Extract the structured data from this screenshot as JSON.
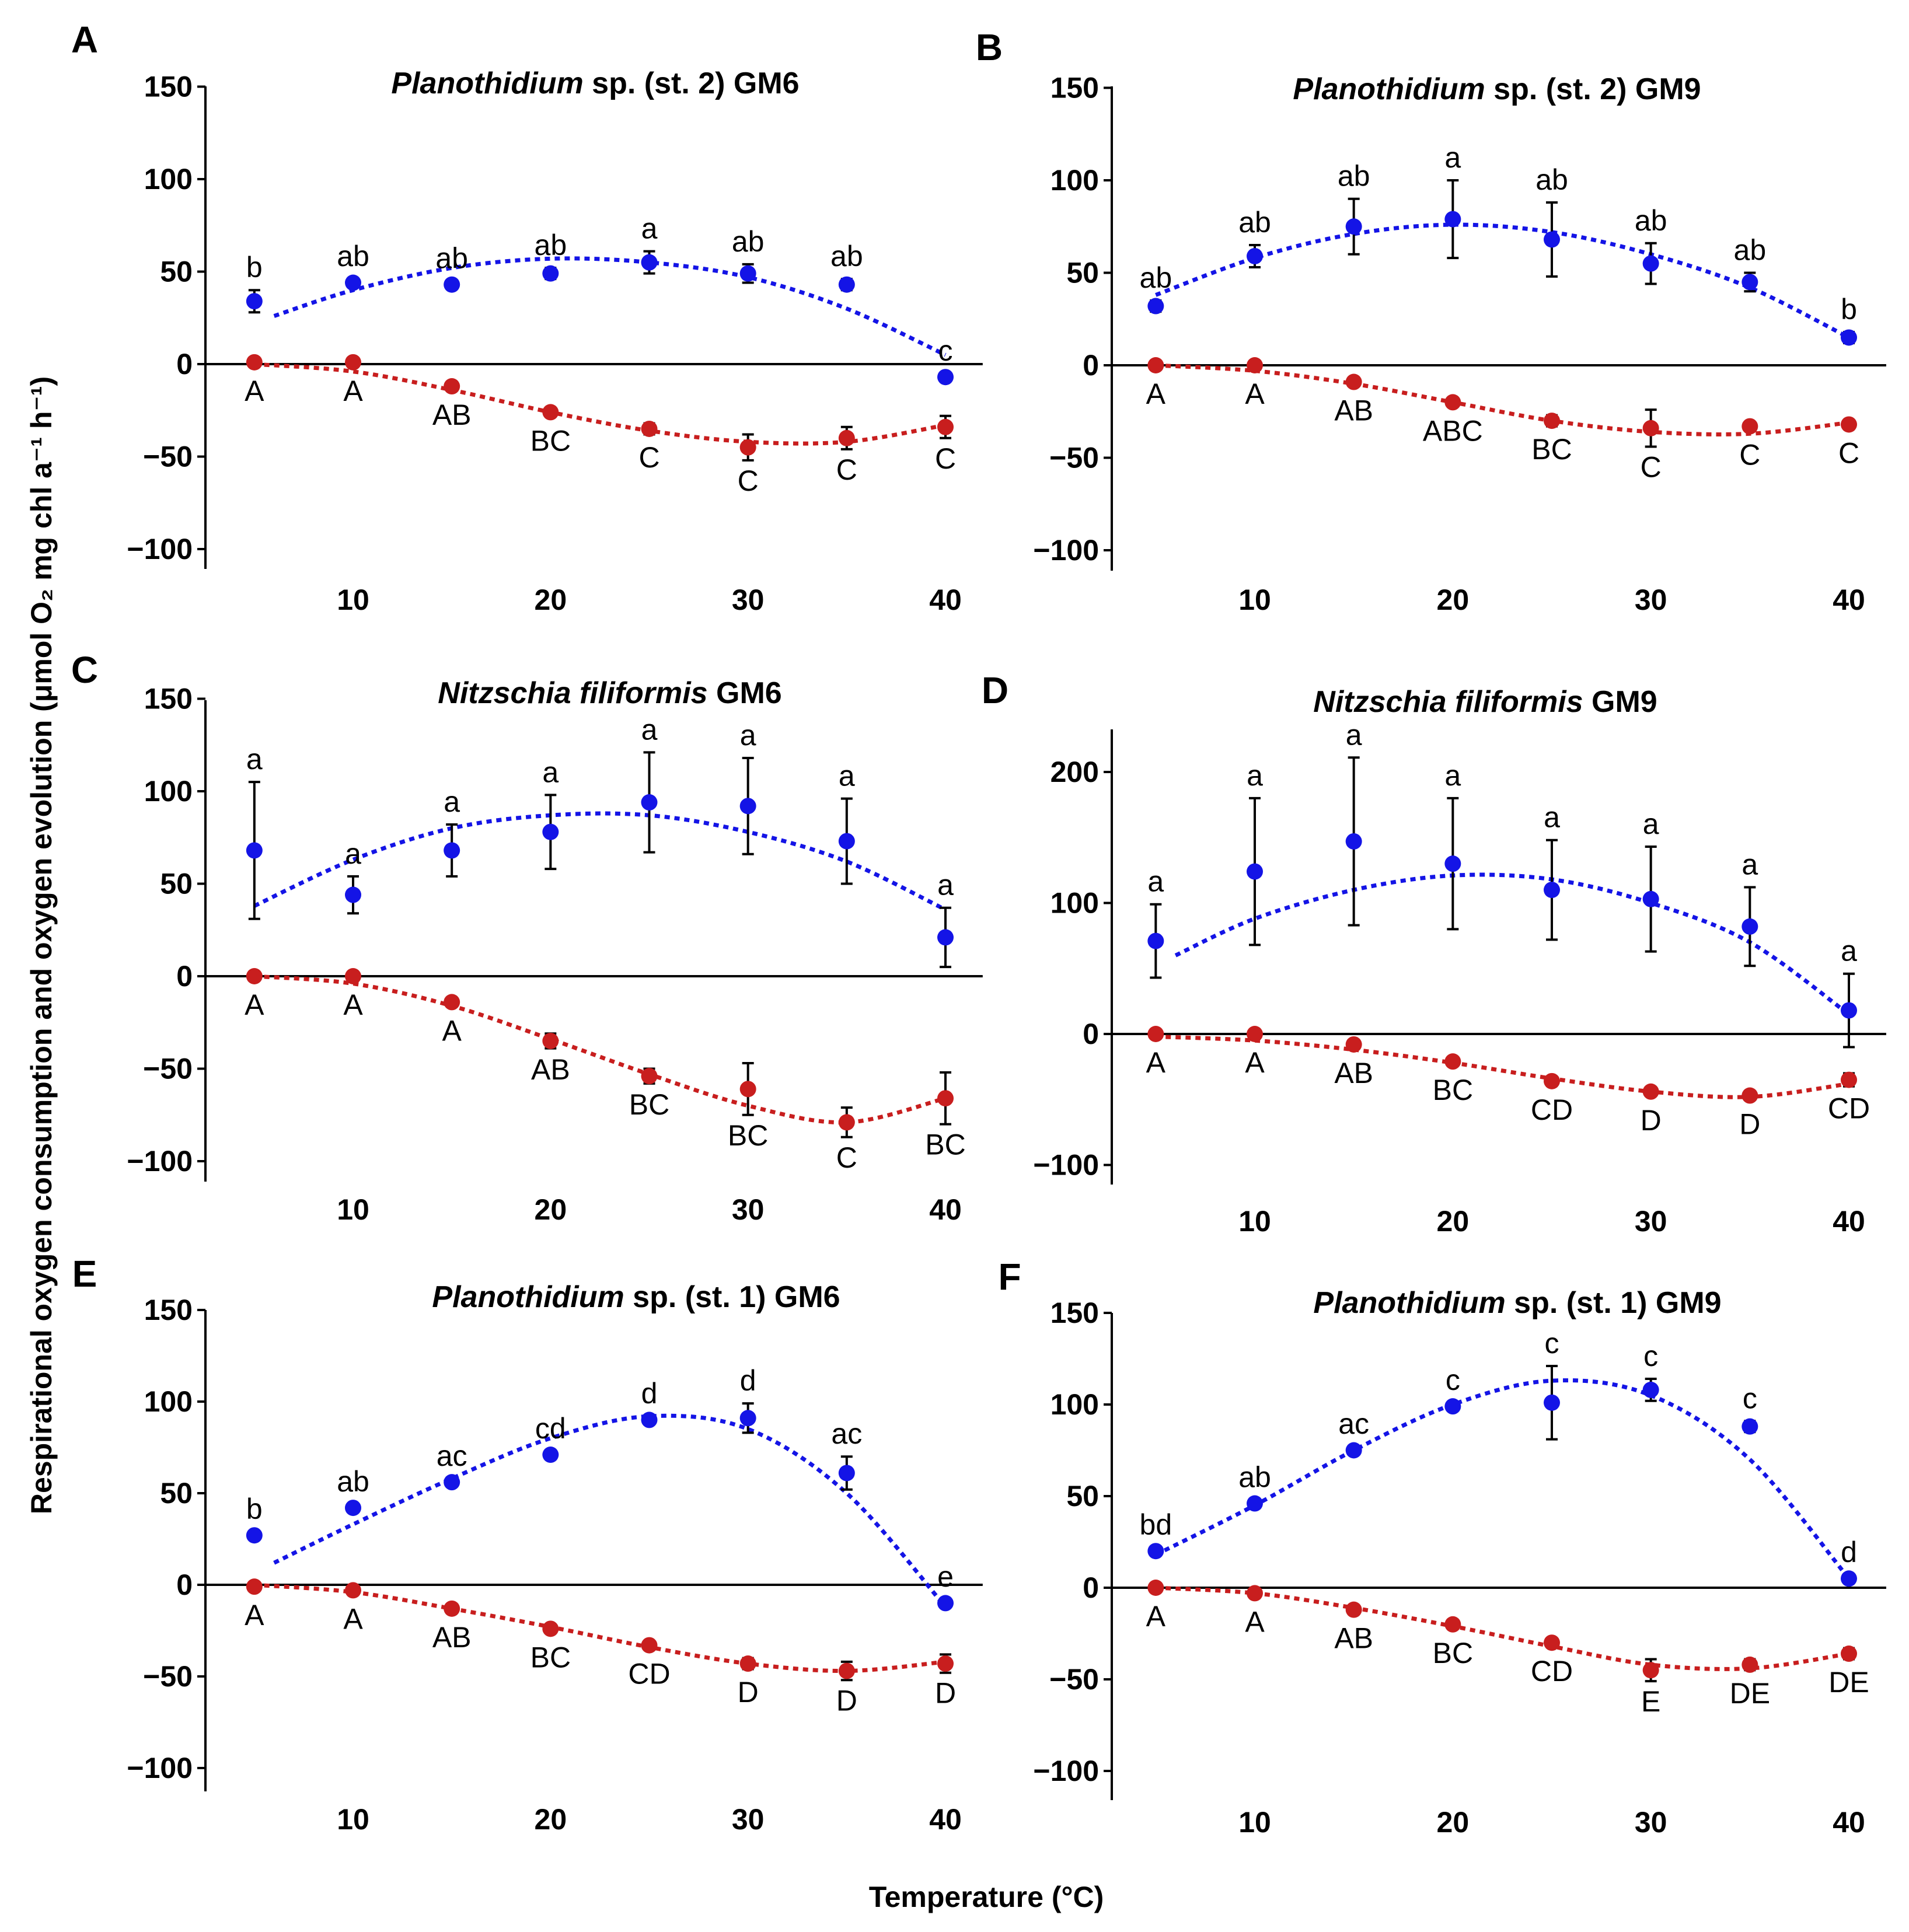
{
  "figure": {
    "y_axis_label": "Respirational oxygen consumption and oxygen evolution (μmol O₂ mg chl a⁻¹ h⁻¹)",
    "x_axis_label": "Temperature (°C)"
  },
  "colors": {
    "photosynthesis": "#1414e6",
    "respiration": "#c81e1e",
    "axis": "#000000"
  },
  "chart_data": [
    {
      "panel": "A",
      "type": "scatter",
      "title": "Planothidium sp. (st. 2) GM6",
      "title_italic": "Planothidium",
      "title_rest": " sp. (st. 2) GM6",
      "x": [
        5,
        10,
        15,
        20,
        25,
        30,
        35,
        40
      ],
      "xticks": [
        10,
        20,
        30,
        40
      ],
      "yticks": [
        150,
        100,
        50,
        0,
        -50,
        -100
      ],
      "xlim": [
        3,
        41
      ],
      "ylim": [
        -110,
        150
      ],
      "series": [
        {
          "name": "Oxygen evolution",
          "values": [
            34,
            44,
            43,
            49,
            55,
            49,
            43,
            -7
          ],
          "err": [
            6,
            2,
            2,
            3,
            6,
            5,
            3,
            2
          ],
          "labels": [
            "b",
            "ab",
            "ab",
            "ab",
            "a",
            "ab",
            "ab",
            "c"
          ],
          "fit": [
            [
              6,
              26
            ],
            [
              10,
              40
            ],
            [
              15,
              52
            ],
            [
              20,
              57
            ],
            [
              25,
              55
            ],
            [
              30,
              47
            ],
            [
              35,
              30
            ],
            [
              40,
              5
            ]
          ]
        },
        {
          "name": "Respiration",
          "values": [
            1,
            1,
            -12,
            -26,
            -35,
            -45,
            -40,
            -34
          ],
          "err": [
            1,
            1,
            2,
            2,
            3,
            7,
            6,
            6
          ],
          "labels": [
            "A",
            "A",
            "AB",
            "BC",
            "C",
            "C",
            "C",
            "C"
          ],
          "fit": [
            [
              5,
              0
            ],
            [
              10,
              -4
            ],
            [
              15,
              -14
            ],
            [
              20,
              -26
            ],
            [
              25,
              -36
            ],
            [
              30,
              -42
            ],
            [
              35,
              -42
            ],
            [
              40,
              -33
            ]
          ]
        }
      ]
    },
    {
      "panel": "B",
      "type": "scatter",
      "title": "Planothidium sp. (st. 2) GM9",
      "title_italic": "Planothidium",
      "title_rest": " sp. (st. 2) GM9",
      "x": [
        5,
        10,
        15,
        20,
        25,
        30,
        35,
        40
      ],
      "xticks": [
        10,
        20,
        30,
        40
      ],
      "yticks": [
        150,
        100,
        50,
        0,
        -50,
        -100
      ],
      "xlim": [
        3,
        41
      ],
      "ylim": [
        -110,
        150
      ],
      "series": [
        {
          "name": "Oxygen evolution",
          "values": [
            32,
            59,
            75,
            79,
            68,
            55,
            45,
            15
          ],
          "err": [
            3,
            6,
            15,
            21,
            20,
            11,
            5,
            3
          ],
          "labels": [
            "ab",
            "ab",
            "ab",
            "a",
            "ab",
            "ab",
            "ab",
            "b"
          ],
          "fit": [
            [
              5,
              38
            ],
            [
              10,
              58
            ],
            [
              15,
              71
            ],
            [
              20,
              76
            ],
            [
              25,
              72
            ],
            [
              30,
              60
            ],
            [
              35,
              42
            ],
            [
              40,
              15
            ]
          ]
        },
        {
          "name": "Respiration",
          "values": [
            0,
            0,
            -9,
            -20,
            -30,
            -34,
            -33,
            -32
          ],
          "err": [
            1,
            1,
            2,
            2,
            3,
            10,
            2,
            2
          ],
          "labels": [
            "A",
            "A",
            "AB",
            "ABC",
            "BC",
            "C",
            "C",
            "C"
          ],
          "fit": [
            [
              5,
              0
            ],
            [
              10,
              -3
            ],
            [
              15,
              -10
            ],
            [
              20,
              -20
            ],
            [
              25,
              -30
            ],
            [
              30,
              -36
            ],
            [
              35,
              -37
            ],
            [
              40,
              -31
            ]
          ]
        }
      ]
    },
    {
      "panel": "C",
      "type": "scatter",
      "title": "Nitzschia filiformis GM6",
      "title_italic": "Nitzschia filiformis",
      "title_rest": " GM6",
      "x": [
        5,
        10,
        15,
        20,
        25,
        30,
        35,
        40
      ],
      "xticks": [
        10,
        20,
        30,
        40
      ],
      "yticks": [
        150,
        100,
        50,
        0,
        -50,
        -100
      ],
      "xlim": [
        3,
        41
      ],
      "ylim": [
        -110,
        150
      ],
      "series": [
        {
          "name": "Oxygen evolution",
          "values": [
            68,
            44,
            68,
            78,
            94,
            92,
            73,
            21
          ],
          "err": [
            37,
            10,
            14,
            20,
            27,
            26,
            23,
            16
          ],
          "labels": [
            "a",
            "a",
            "a",
            "a",
            "a",
            "a",
            "a",
            "a"
          ],
          "fit": [
            [
              5,
              38
            ],
            [
              10,
              63
            ],
            [
              15,
              80
            ],
            [
              20,
              87
            ],
            [
              25,
              87
            ],
            [
              30,
              78
            ],
            [
              35,
              62
            ],
            [
              40,
              36
            ]
          ]
        },
        {
          "name": "Respiration",
          "values": [
            0,
            0,
            -14,
            -35,
            -54,
            -61,
            -79,
            -66
          ],
          "err": [
            1,
            1,
            2,
            4,
            4,
            14,
            8,
            14
          ],
          "labels": [
            "A",
            "A",
            "A",
            "AB",
            "BC",
            "BC",
            "C",
            "BC"
          ],
          "fit": [
            [
              5,
              0
            ],
            [
              10,
              -4
            ],
            [
              15,
              -16
            ],
            [
              20,
              -34
            ],
            [
              25,
              -53
            ],
            [
              30,
              -70
            ],
            [
              35,
              -79
            ],
            [
              40,
              -66
            ]
          ]
        }
      ]
    },
    {
      "panel": "D",
      "type": "scatter",
      "title": "Nitzschia filiformis GM9",
      "title_italic": "Nitzschia filiformis",
      "title_rest": " GM9",
      "x": [
        5,
        10,
        15,
        20,
        25,
        30,
        35,
        40
      ],
      "xticks": [
        10,
        20,
        30,
        40
      ],
      "yticks": [
        200,
        100,
        0,
        -100
      ],
      "xlim": [
        3,
        41
      ],
      "ylim": [
        -115,
        230
      ],
      "series": [
        {
          "name": "Oxygen evolution",
          "values": [
            71,
            124,
            147,
            130,
            110,
            103,
            82,
            18
          ],
          "err": [
            28,
            56,
            64,
            50,
            38,
            40,
            30,
            28
          ],
          "labels": [
            "a",
            "a",
            "a",
            "a",
            "a",
            "a",
            "a",
            "a"
          ],
          "fit": [
            [
              6,
              60
            ],
            [
              10,
              88
            ],
            [
              15,
              110
            ],
            [
              20,
              121
            ],
            [
              25,
              118
            ],
            [
              30,
              100
            ],
            [
              35,
              70
            ],
            [
              40,
              15
            ]
          ]
        },
        {
          "name": "Respiration",
          "values": [
            0,
            0,
            -8,
            -21,
            -36,
            -44,
            -47,
            -35
          ],
          "err": [
            1,
            1,
            2,
            3,
            3,
            3,
            3,
            5
          ],
          "labels": [
            "A",
            "A",
            "AB",
            "BC",
            "CD",
            "D",
            "D",
            "CD"
          ],
          "fit": [
            [
              5,
              -2
            ],
            [
              10,
              -5
            ],
            [
              15,
              -12
            ],
            [
              20,
              -22
            ],
            [
              25,
              -34
            ],
            [
              30,
              -44
            ],
            [
              35,
              -48
            ],
            [
              40,
              -38
            ]
          ]
        }
      ]
    },
    {
      "panel": "E",
      "type": "scatter",
      "title": "Planothidium sp. (st. 1) GM6",
      "title_italic": "Planothidium",
      "title_rest": " sp. (st. 1) GM6",
      "x": [
        5,
        10,
        15,
        20,
        25,
        30,
        35,
        40
      ],
      "xticks": [
        10,
        20,
        30,
        40
      ],
      "yticks": [
        150,
        100,
        50,
        0,
        -50,
        -100
      ],
      "xlim": [
        3,
        41
      ],
      "ylim": [
        -110,
        150
      ],
      "series": [
        {
          "name": "Oxygen evolution",
          "values": [
            27,
            42,
            56,
            71,
            90,
            91,
            61,
            -10
          ],
          "err": [
            2,
            2,
            2,
            2,
            2,
            8,
            9,
            2
          ],
          "labels": [
            "b",
            "ab",
            "ac",
            "cd",
            "d",
            "d",
            "ac",
            "e"
          ],
          "fit": [
            [
              6,
              12
            ],
            [
              10,
              33
            ],
            [
              15,
              58
            ],
            [
              20,
              80
            ],
            [
              25,
              92
            ],
            [
              30,
              85
            ],
            [
              35,
              50
            ],
            [
              40,
              -12
            ]
          ]
        },
        {
          "name": "Respiration",
          "values": [
            -1,
            -3,
            -13,
            -24,
            -33,
            -43,
            -47,
            -43
          ],
          "err": [
            1,
            2,
            2,
            2,
            2,
            3,
            5,
            5
          ],
          "labels": [
            "A",
            "A",
            "AB",
            "BC",
            "CD",
            "D",
            "D",
            "D"
          ],
          "fit": [
            [
              5,
              0
            ],
            [
              10,
              -4
            ],
            [
              15,
              -13
            ],
            [
              20,
              -23
            ],
            [
              25,
              -34
            ],
            [
              30,
              -43
            ],
            [
              35,
              -47
            ],
            [
              40,
              -42
            ]
          ]
        }
      ]
    },
    {
      "panel": "F",
      "type": "scatter",
      "title": "Planothidium sp. (st. 1) GM9",
      "title_italic": "Planothidium",
      "title_rest": " sp. (st. 1) GM9",
      "x": [
        5,
        10,
        15,
        20,
        25,
        30,
        35,
        40
      ],
      "xticks": [
        10,
        20,
        30,
        40
      ],
      "yticks": [
        150,
        100,
        50,
        0,
        -50,
        -100
      ],
      "xlim": [
        3,
        41
      ],
      "ylim": [
        -110,
        150
      ],
      "series": [
        {
          "name": "Oxygen evolution",
          "values": [
            20,
            46,
            75,
            99,
            101,
            108,
            88,
            5
          ],
          "err": [
            2,
            2,
            2,
            2,
            20,
            6,
            3,
            2
          ],
          "labels": [
            "bd",
            "ab",
            "ac",
            "c",
            "c",
            "c",
            "c",
            "d"
          ],
          "fit": [
            [
              5,
              18
            ],
            [
              10,
              45
            ],
            [
              15,
              75
            ],
            [
              20,
              100
            ],
            [
              25,
              113
            ],
            [
              30,
              105
            ],
            [
              35,
              70
            ],
            [
              40,
              5
            ]
          ]
        },
        {
          "name": "Respiration",
          "values": [
            0,
            -3,
            -12,
            -20,
            -30,
            -45,
            -42,
            -36
          ],
          "err": [
            1,
            2,
            2,
            2,
            2,
            6,
            3,
            3
          ],
          "labels": [
            "A",
            "A",
            "AB",
            "BC",
            "CD",
            "E",
            "DE",
            "DE"
          ],
          "fit": [
            [
              5,
              0
            ],
            [
              10,
              -3
            ],
            [
              15,
              -11
            ],
            [
              20,
              -21
            ],
            [
              25,
              -32
            ],
            [
              30,
              -42
            ],
            [
              35,
              -44
            ],
            [
              40,
              -36
            ]
          ]
        }
      ]
    }
  ]
}
